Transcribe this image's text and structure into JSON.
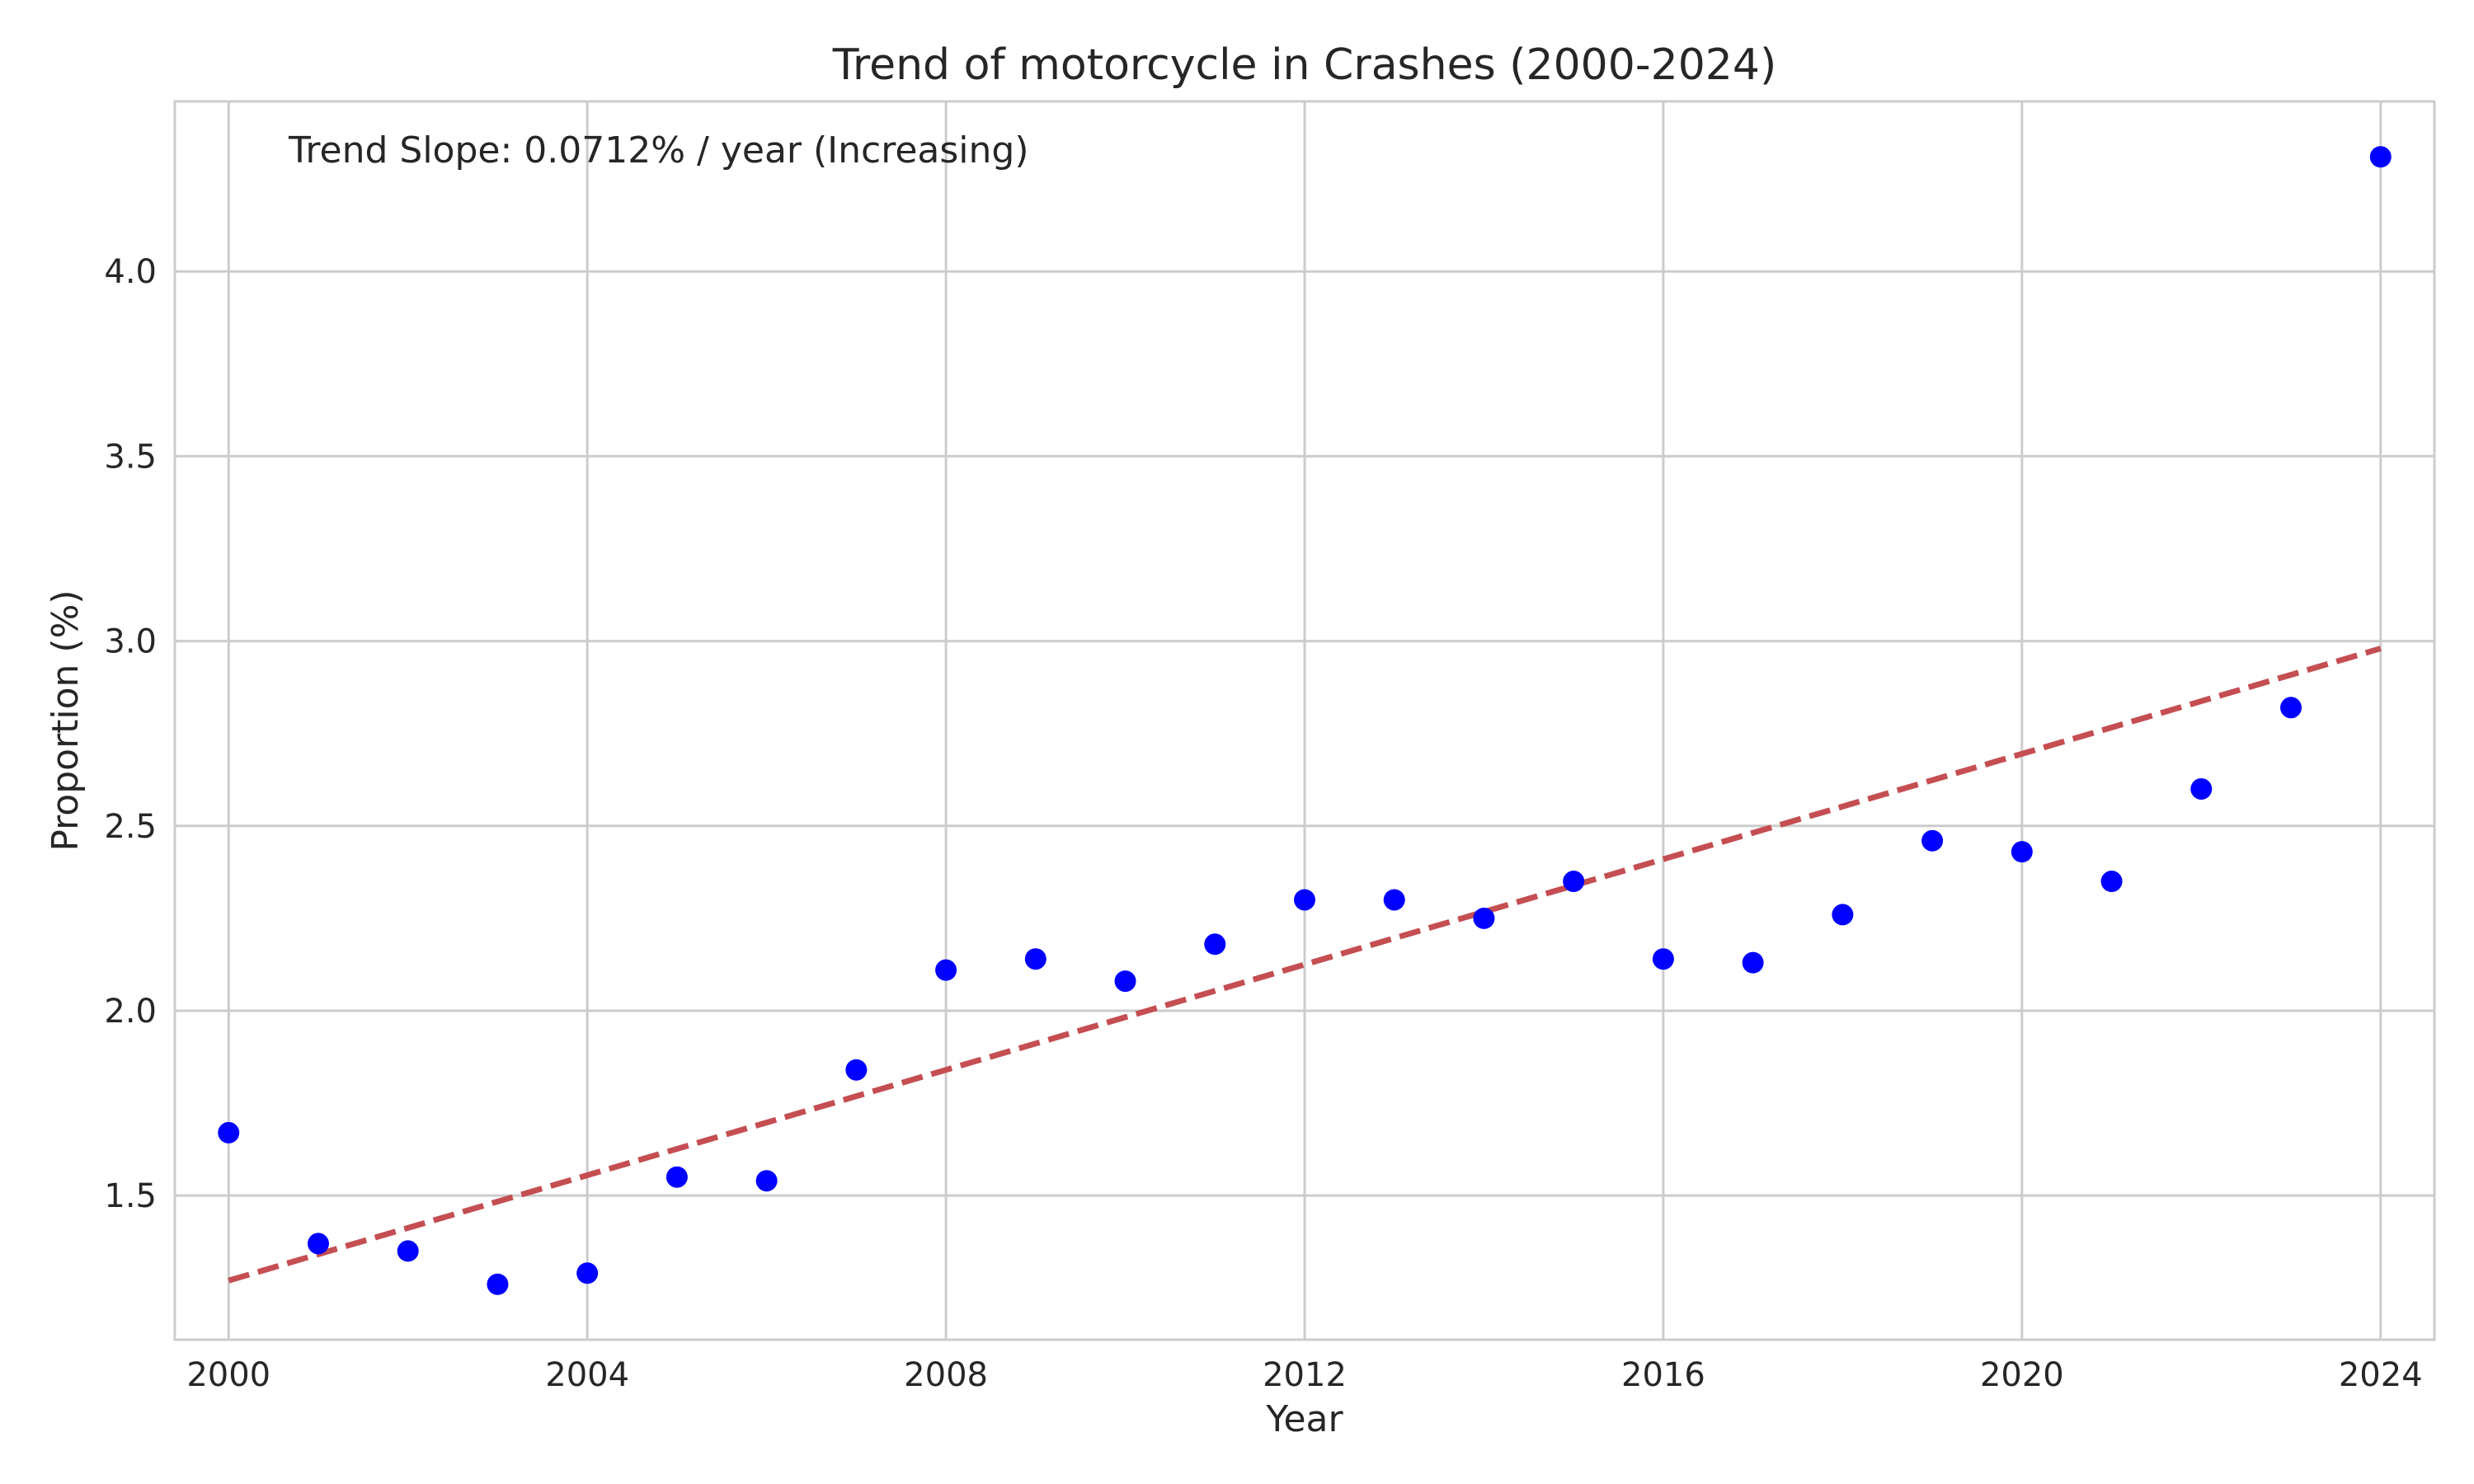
{
  "chart_data": {
    "type": "scatter",
    "title": "Trend of motorcycle in Crashes (2000-2024)",
    "xlabel": "Year",
    "ylabel": "Proportion (%)",
    "xlim": [
      1999.4,
      2024.6
    ],
    "ylim": [
      1.11,
      4.46
    ],
    "xticks": [
      2000,
      2004,
      2008,
      2012,
      2016,
      2020,
      2024
    ],
    "xtick_labels": [
      "2000",
      "2004",
      "2008",
      "2012",
      "2016",
      "2020",
      "2024"
    ],
    "yticks": [
      1.5,
      2.0,
      2.5,
      3.0,
      3.5,
      4.0
    ],
    "ytick_labels": [
      "1.5",
      "2.0",
      "2.5",
      "3.0",
      "3.5",
      "4.0"
    ],
    "grid": true,
    "annotation": "Trend Slope: 0.0712% / year (Increasing)",
    "series": [
      {
        "type": "scatter",
        "color": "#0000ff",
        "x": [
          2000,
          2001,
          2002,
          2003,
          2004,
          2005,
          2006,
          2007,
          2008,
          2009,
          2010,
          2011,
          2012,
          2013,
          2014,
          2015,
          2016,
          2017,
          2018,
          2019,
          2020,
          2021,
          2022,
          2023,
          2024
        ],
        "y": [
          1.67,
          1.37,
          1.35,
          1.26,
          1.29,
          1.55,
          1.54,
          1.84,
          2.11,
          2.14,
          2.08,
          2.18,
          2.3,
          2.3,
          2.25,
          2.35,
          2.14,
          2.13,
          2.26,
          2.46,
          2.43,
          2.35,
          2.6,
          2.82,
          4.31
        ]
      },
      {
        "type": "line",
        "style": "dashed",
        "color": "#c44e52",
        "x": [
          2000,
          2024
        ],
        "y": [
          1.27,
          2.98
        ]
      }
    ]
  }
}
